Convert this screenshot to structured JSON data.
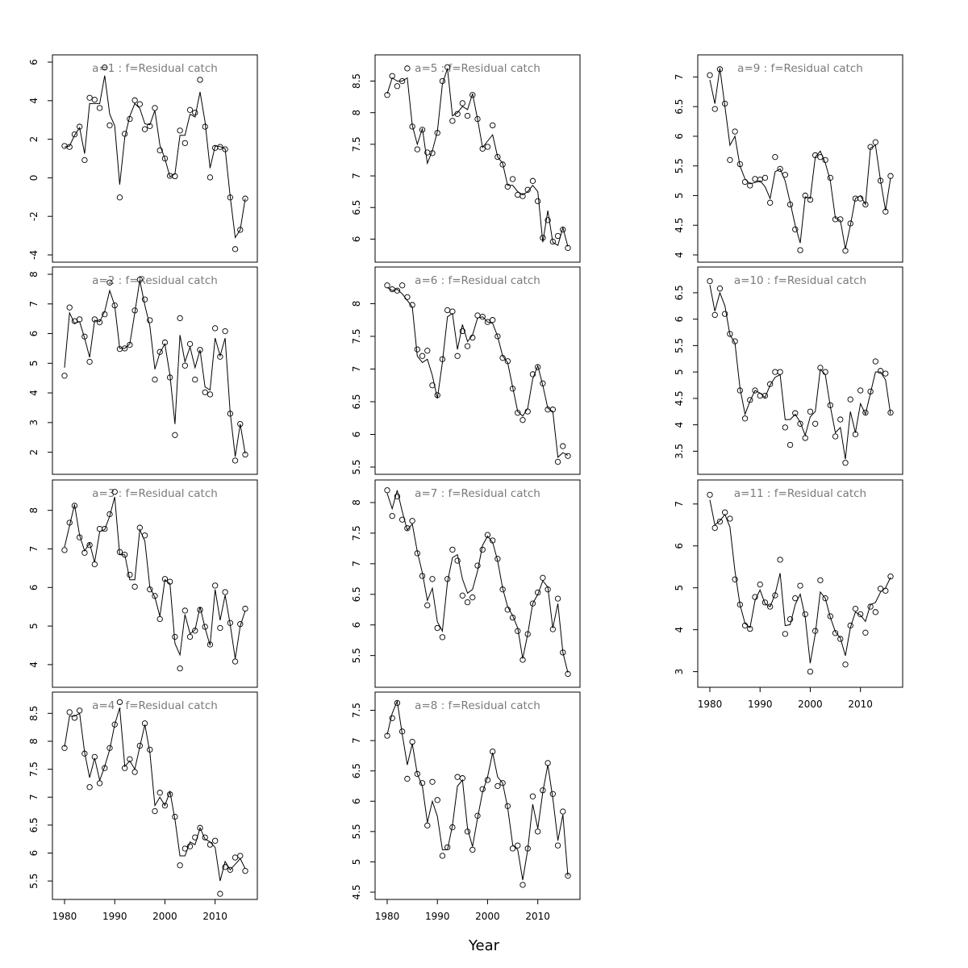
{
  "figure": {
    "xlabel": "Year"
  },
  "chart_data": [
    {
      "type": "line",
      "title": "a=1  :  f=Residual catch",
      "xlim": [
        1980,
        2016
      ],
      "ylim": [
        -4,
        6
      ],
      "yticks": [
        -4,
        -2,
        0,
        2,
        4,
        6
      ],
      "xticks": [],
      "observed": [
        1.65,
        1.6,
        2.25,
        2.65,
        0.92,
        4.15,
        4.05,
        3.62,
        5.72,
        2.72,
        null,
        -1.02,
        2.28,
        3.05,
        4.02,
        3.82,
        2.52,
        2.68,
        3.62,
        1.42,
        1.0,
        0.1,
        0.08,
        2.45,
        1.8,
        3.52,
        3.38,
        5.08,
        2.65,
        0.02,
        1.55,
        1.6,
        1.48,
        -1.02,
        -3.7,
        -2.7,
        -1.08
      ],
      "fitted": [
        1.6,
        1.65,
        2.2,
        2.6,
        1.25,
        3.85,
        3.85,
        3.85,
        5.3,
        3.3,
        2.7,
        -0.35,
        2.1,
        3.2,
        3.85,
        3.6,
        2.8,
        2.75,
        3.5,
        1.7,
        1.0,
        0.05,
        0.2,
        2.2,
        2.2,
        3.3,
        3.15,
        4.45,
        2.9,
        0.5,
        1.65,
        1.62,
        1.5,
        -0.95,
        -3.1,
        -2.7,
        -1.08
      ]
    },
    {
      "type": "line",
      "title": "a=2  :  f=Residual catch",
      "xlim": [
        1980,
        2016
      ],
      "ylim": [
        1.5,
        8
      ],
      "yticks": [
        2,
        3,
        4,
        5,
        6,
        7,
        8
      ],
      "xticks": [],
      "observed": [
        4.58,
        6.88,
        6.42,
        6.48,
        5.9,
        5.05,
        6.48,
        6.38,
        6.65,
        7.72,
        6.95,
        5.48,
        5.5,
        5.62,
        6.78,
        7.82,
        7.15,
        6.45,
        4.45,
        5.38,
        5.7,
        4.52,
        2.58,
        6.52,
        4.92,
        5.65,
        4.45,
        5.45,
        4.02,
        3.95,
        6.18,
        5.22,
        6.08,
        3.3,
        1.72,
        2.95,
        1.92
      ],
      "fitted": [
        4.85,
        6.7,
        6.35,
        6.4,
        5.85,
        5.2,
        6.45,
        6.4,
        6.75,
        7.45,
        6.95,
        5.5,
        5.5,
        5.65,
        6.7,
        7.8,
        6.95,
        6.25,
        4.8,
        5.35,
        5.65,
        4.6,
        2.95,
        5.95,
        5.05,
        5.55,
        4.85,
        5.45,
        4.2,
        4.1,
        5.85,
        5.25,
        5.85,
        3.35,
        1.85,
        2.95,
        1.95
      ]
    },
    {
      "type": "line",
      "title": "a=3  :  f=Residual catch",
      "xlim": [
        1980,
        2016
      ],
      "ylim": [
        3.6,
        8.6
      ],
      "yticks": [
        4,
        5,
        6,
        7,
        8
      ],
      "xticks": [],
      "observed": [
        6.97,
        7.68,
        8.12,
        7.3,
        6.9,
        7.1,
        6.6,
        7.52,
        7.52,
        7.9,
        8.48,
        6.92,
        6.85,
        6.33,
        6.02,
        7.55,
        7.35,
        5.95,
        5.78,
        5.18,
        6.22,
        6.15,
        4.72,
        3.9,
        5.4,
        4.72,
        4.88,
        5.42,
        4.98,
        4.52,
        6.05,
        4.95,
        5.88,
        5.08,
        4.08,
        5.05,
        5.45
      ],
      "fitted": [
        7.05,
        7.6,
        8.15,
        7.35,
        6.95,
        7.15,
        6.65,
        7.45,
        7.5,
        7.85,
        8.35,
        6.85,
        6.85,
        6.2,
        6.2,
        7.5,
        7.2,
        6.0,
        5.75,
        5.25,
        6.2,
        6.1,
        4.55,
        4.25,
        5.3,
        4.8,
        4.9,
        5.5,
        4.95,
        4.5,
        5.95,
        5.15,
        5.8,
        5.05,
        4.15,
        5.0,
        5.4
      ]
    },
    {
      "type": "line",
      "title": "a=4  :  f=Residual catch",
      "xlim": [
        1980,
        2016
      ],
      "ylim": [
        5.3,
        8.75
      ],
      "yticks": [
        5.5,
        6.0,
        6.5,
        7.0,
        7.5,
        8.0,
        8.5
      ],
      "xticks": [
        1980,
        1990,
        2000,
        2010
      ],
      "observed": [
        7.88,
        8.52,
        8.42,
        8.55,
        7.78,
        7.18,
        7.72,
        7.25,
        7.52,
        7.88,
        8.3,
        8.7,
        7.52,
        7.68,
        7.45,
        7.92,
        8.32,
        7.85,
        6.75,
        7.08,
        6.85,
        7.05,
        6.65,
        5.78,
        6.08,
        6.12,
        6.28,
        6.45,
        6.28,
        6.15,
        6.22,
        5.27,
        5.75,
        5.7,
        5.92,
        5.95,
        5.68
      ],
      "fitted": [
        7.9,
        8.45,
        8.45,
        8.5,
        7.8,
        7.35,
        7.7,
        7.3,
        7.55,
        7.85,
        8.3,
        8.6,
        7.55,
        7.65,
        7.5,
        7.9,
        8.3,
        7.8,
        6.85,
        7.0,
        6.85,
        7.1,
        6.6,
        5.95,
        5.95,
        6.2,
        6.15,
        6.45,
        6.25,
        6.2,
        6.1,
        5.5,
        5.85,
        5.7,
        5.8,
        5.9,
        5.72
      ]
    },
    {
      "type": "line",
      "title": "a=5  :  f=Residual catch",
      "xlim": [
        1980,
        2016
      ],
      "ylim": [
        5.75,
        8.8
      ],
      "yticks": [
        6.0,
        6.5,
        7.0,
        7.5,
        8.0,
        8.5
      ],
      "xticks": [],
      "observed": [
        8.28,
        8.58,
        8.42,
        8.5,
        8.7,
        7.78,
        7.42,
        7.73,
        7.37,
        7.36,
        7.68,
        8.5,
        8.72,
        7.87,
        7.98,
        8.15,
        7.95,
        8.28,
        7.9,
        7.43,
        7.46,
        7.8,
        7.3,
        7.18,
        6.83,
        6.95,
        6.7,
        6.68,
        6.78,
        6.92,
        6.6,
        6.02,
        6.3,
        5.96,
        6.05,
        6.15,
        5.86
      ],
      "fitted": [
        8.3,
        8.55,
        8.5,
        8.5,
        8.55,
        7.8,
        7.5,
        7.75,
        7.2,
        7.4,
        7.7,
        8.45,
        8.7,
        7.95,
        8.0,
        8.1,
        8.05,
        8.3,
        7.9,
        7.45,
        7.55,
        7.65,
        7.3,
        7.2,
        6.85,
        6.85,
        6.75,
        6.7,
        6.75,
        6.85,
        6.75,
        5.95,
        6.45,
        5.95,
        5.9,
        6.18,
        5.88
      ]
    },
    {
      "type": "line",
      "title": "a=6  :  f=Residual catch",
      "xlim": [
        1980,
        2016
      ],
      "ylim": [
        5.5,
        8.45
      ],
      "yticks": [
        5.5,
        6.0,
        6.5,
        7.0,
        7.5,
        8.0
      ],
      "xticks": [],
      "observed": [
        8.28,
        8.22,
        8.2,
        8.28,
        8.1,
        7.98,
        7.3,
        7.2,
        7.28,
        6.75,
        6.6,
        7.15,
        7.9,
        7.88,
        7.2,
        7.58,
        7.35,
        7.48,
        7.82,
        7.8,
        7.72,
        7.75,
        7.5,
        7.17,
        7.12,
        6.7,
        6.33,
        6.22,
        6.35,
        6.92,
        7.03,
        6.78,
        6.38,
        6.38,
        5.58,
        5.82,
        5.67
      ],
      "fitted": [
        8.25,
        8.2,
        8.22,
        8.15,
        8.05,
        7.95,
        7.2,
        7.1,
        7.15,
        6.9,
        6.55,
        7.1,
        7.8,
        7.85,
        7.3,
        7.68,
        7.42,
        7.52,
        7.78,
        7.8,
        7.72,
        7.7,
        7.5,
        7.2,
        7.1,
        6.72,
        6.35,
        6.28,
        6.4,
        6.85,
        7.05,
        6.75,
        6.4,
        6.35,
        5.65,
        5.72,
        5.68
      ]
    },
    {
      "type": "line",
      "title": "a=7  :  f=Residual catch",
      "xlim": [
        1980,
        2016
      ],
      "ylim": [
        5.1,
        8.25
      ],
      "yticks": [
        5.5,
        6.0,
        6.5,
        7.0,
        7.5,
        8.0
      ],
      "xticks": [],
      "observed": [
        8.2,
        7.78,
        8.1,
        7.72,
        7.58,
        7.7,
        7.17,
        6.8,
        6.32,
        6.75,
        5.95,
        5.8,
        6.75,
        7.23,
        7.05,
        6.48,
        6.37,
        6.45,
        6.97,
        7.23,
        7.47,
        7.38,
        7.08,
        6.58,
        6.25,
        6.12,
        5.9,
        5.43,
        5.85,
        6.35,
        6.53,
        6.77,
        6.58,
        5.93,
        6.43,
        5.55,
        5.2
      ],
      "fitted": [
        8.15,
        7.9,
        8.2,
        7.85,
        7.55,
        7.65,
        7.2,
        6.85,
        6.4,
        6.6,
        6.05,
        5.9,
        6.7,
        7.1,
        7.15,
        6.75,
        6.52,
        6.58,
        6.88,
        7.3,
        7.45,
        7.35,
        7.05,
        6.6,
        6.3,
        6.15,
        5.95,
        5.45,
        5.85,
        6.35,
        6.5,
        6.72,
        6.62,
        5.95,
        6.35,
        5.55,
        5.22
      ]
    },
    {
      "type": "line",
      "title": "a=8  :  f=Residual catch",
      "xlim": [
        1980,
        2016
      ],
      "ylim": [
        4.5,
        7.68
      ],
      "yticks": [
        4.5,
        5.0,
        5.5,
        6.0,
        6.5,
        7.0,
        7.5
      ],
      "xticks": [
        1980,
        1990,
        2000,
        2010
      ],
      "observed": [
        7.08,
        7.37,
        7.62,
        7.15,
        6.37,
        6.98,
        6.45,
        6.3,
        5.6,
        6.32,
        6.02,
        5.1,
        5.24,
        5.57,
        6.4,
        6.38,
        5.5,
        5.2,
        5.76,
        6.2,
        6.35,
        6.82,
        6.25,
        6.3,
        5.92,
        5.22,
        5.27,
        4.62,
        5.22,
        6.08,
        5.5,
        6.18,
        6.63,
        6.12,
        5.27,
        5.83,
        4.77
      ],
      "fitted": [
        7.1,
        7.45,
        7.65,
        7.1,
        6.6,
        6.95,
        6.45,
        6.25,
        5.65,
        6.0,
        5.75,
        5.2,
        5.2,
        5.6,
        6.25,
        6.35,
        5.55,
        5.25,
        5.72,
        6.15,
        6.4,
        6.8,
        6.4,
        6.3,
        5.9,
        5.28,
        5.2,
        4.7,
        5.2,
        5.95,
        5.55,
        6.15,
        6.6,
        6.05,
        5.35,
        5.78,
        4.77
      ]
    },
    {
      "type": "line",
      "title": "a=9  :  f=Residual catch",
      "xlim": [
        1980,
        2016
      ],
      "ylim": [
        4.0,
        7.25
      ],
      "yticks": [
        4.0,
        4.5,
        5.0,
        5.5,
        6.0,
        6.5,
        7.0
      ],
      "xticks": [],
      "observed": [
        7.03,
        6.46,
        7.13,
        6.55,
        5.6,
        6.08,
        5.53,
        5.23,
        5.17,
        5.28,
        5.27,
        5.3,
        4.88,
        5.65,
        5.45,
        5.35,
        4.85,
        4.43,
        4.08,
        5.0,
        4.93,
        5.68,
        5.65,
        5.6,
        5.3,
        4.6,
        4.6,
        4.07,
        4.53,
        4.95,
        4.95,
        4.85,
        5.82,
        5.9,
        5.25,
        4.73,
        5.33
      ],
      "fitted": [
        6.95,
        6.55,
        7.15,
        6.5,
        5.85,
        6.0,
        5.5,
        5.28,
        5.2,
        5.22,
        5.25,
        5.15,
        4.95,
        5.4,
        5.45,
        5.25,
        4.88,
        4.5,
        4.2,
        4.98,
        4.95,
        5.65,
        5.75,
        5.55,
        5.25,
        4.62,
        4.58,
        4.1,
        4.5,
        4.95,
        5.0,
        4.85,
        5.8,
        5.85,
        5.25,
        4.75,
        5.3
      ]
    },
    {
      "type": "line",
      "title": "a=10  :  f=Residual catch",
      "xlim": [
        1980,
        2016
      ],
      "ylim": [
        3.2,
        6.85
      ],
      "yticks": [
        3.5,
        4.0,
        4.5,
        5.0,
        5.5,
        6.0,
        6.5
      ],
      "xticks": [],
      "observed": [
        6.72,
        6.08,
        6.58,
        6.1,
        5.72,
        5.58,
        4.65,
        4.12,
        4.47,
        4.65,
        4.55,
        4.55,
        4.77,
        5.0,
        5.0,
        3.95,
        3.62,
        4.22,
        4.02,
        3.75,
        4.25,
        4.02,
        5.08,
        5.0,
        4.37,
        3.78,
        4.1,
        3.28,
        4.48,
        3.82,
        4.65,
        4.23,
        4.63,
        5.2,
        5.02,
        4.97,
        4.23
      ],
      "fitted": [
        6.65,
        6.15,
        6.5,
        6.25,
        5.7,
        5.55,
        4.7,
        4.2,
        4.45,
        4.65,
        4.6,
        4.52,
        4.75,
        4.9,
        4.95,
        4.1,
        4.1,
        4.2,
        4.05,
        3.8,
        4.15,
        4.25,
        5.05,
        4.95,
        4.35,
        3.85,
        3.95,
        3.35,
        4.25,
        3.85,
        4.4,
        4.2,
        4.6,
        5.0,
        5.0,
        4.85,
        4.2
      ]
    },
    {
      "type": "line",
      "title": "a=11  :  f=Residual catch",
      "xlim": [
        1980,
        2016
      ],
      "ylim": [
        2.8,
        7.4
      ],
      "yticks": [
        3,
        4,
        5,
        6,
        7
      ],
      "xticks": [
        1980,
        1990,
        2000,
        2010
      ],
      "observed": [
        7.22,
        6.43,
        6.58,
        6.8,
        6.65,
        5.2,
        4.6,
        4.1,
        4.02,
        4.78,
        5.08,
        4.65,
        4.55,
        4.82,
        5.67,
        3.9,
        4.25,
        4.75,
        5.05,
        4.37,
        3.0,
        3.97,
        5.18,
        4.75,
        4.32,
        3.92,
        3.78,
        3.17,
        4.1,
        4.5,
        4.37,
        3.93,
        4.55,
        4.42,
        4.98,
        4.93,
        5.27
      ],
      "fitted": [
        7.1,
        6.5,
        6.6,
        6.75,
        6.45,
        5.4,
        4.6,
        4.15,
        4.05,
        4.7,
        4.95,
        4.62,
        4.55,
        4.85,
        5.35,
        4.1,
        4.12,
        4.6,
        4.85,
        4.3,
        3.2,
        3.9,
        4.9,
        4.75,
        4.3,
        3.95,
        3.8,
        3.38,
        4.05,
        4.42,
        4.35,
        4.2,
        4.6,
        4.65,
        4.9,
        5.0,
        5.25
      ]
    }
  ]
}
